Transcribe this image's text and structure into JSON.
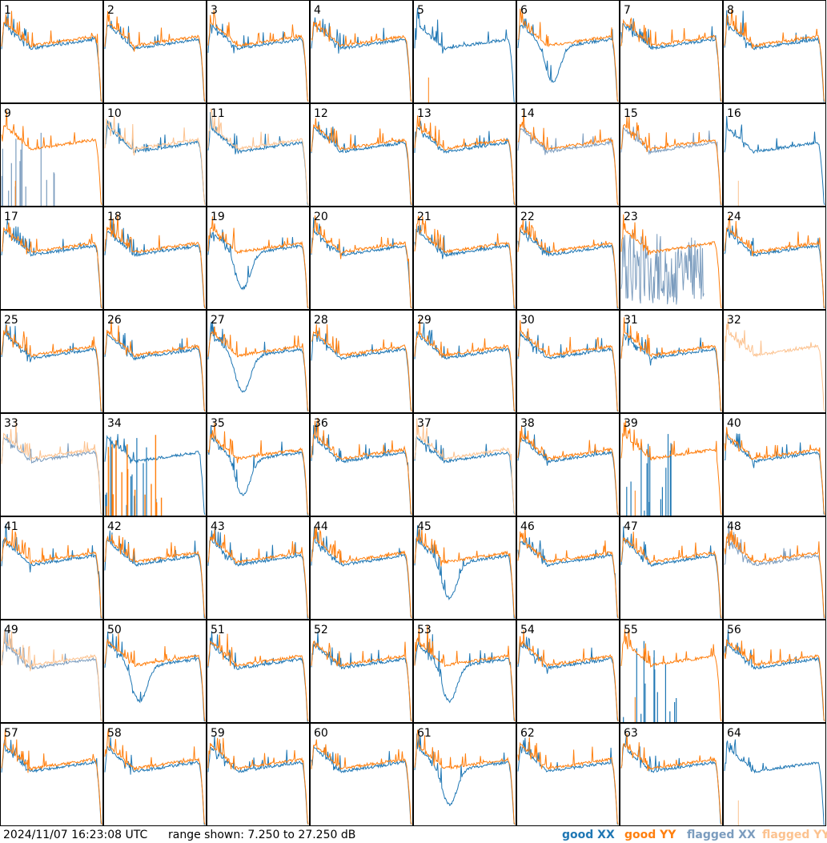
{
  "colors": {
    "good_xx": "#1f77b4",
    "good_yy": "#ff7f0e",
    "flagged_xx": "#7b9cbe",
    "flagged_yy": "#fcc28f"
  },
  "footer": {
    "timestamp": "2024/11/07 16:23:08 UTC",
    "range": "range shown: 7.250 to 27.250 dB",
    "legend_good_xx": "good XX",
    "legend_good_yy": "good YY",
    "legend_flagged_xx": "flagged XX",
    "legend_flagged_yy": "flagged YY"
  },
  "chart_data": {
    "type": "line",
    "ylim": [
      7.25,
      27.25
    ],
    "units": "dB",
    "panels": [
      {
        "label": "1",
        "shape": "normal",
        "xx": "good",
        "yy": "good"
      },
      {
        "label": "2",
        "shape": "normal",
        "xx": "good",
        "yy": "good"
      },
      {
        "label": "3",
        "shape": "normal",
        "xx": "good",
        "yy": "good"
      },
      {
        "label": "4",
        "shape": "normal",
        "xx": "good",
        "yy": "good"
      },
      {
        "label": "5",
        "shape": "x-only",
        "xx": "good",
        "yy": "good"
      },
      {
        "label": "6",
        "shape": "xx-dip",
        "xx": "good",
        "yy": "good"
      },
      {
        "label": "7",
        "shape": "normal",
        "xx": "good",
        "yy": "good"
      },
      {
        "label": "8",
        "shape": "normal",
        "xx": "good",
        "yy": "good"
      },
      {
        "label": "9",
        "shape": "x-spikes",
        "xx": "flagged",
        "yy": "good"
      },
      {
        "label": "10",
        "shape": "flagged-both",
        "xx": "good",
        "yy": "flagged"
      },
      {
        "label": "11",
        "shape": "flagged-both",
        "xx": "good",
        "yy": "flagged"
      },
      {
        "label": "12",
        "shape": "normal",
        "xx": "good",
        "yy": "good"
      },
      {
        "label": "13",
        "shape": "normal",
        "xx": "good",
        "yy": "good"
      },
      {
        "label": "14",
        "shape": "normal",
        "xx": "flagged",
        "yy": "good"
      },
      {
        "label": "15",
        "shape": "normal",
        "xx": "flagged",
        "yy": "good"
      },
      {
        "label": "16",
        "shape": "x-only",
        "xx": "good",
        "yy": "flagged"
      },
      {
        "label": "17",
        "shape": "normal",
        "xx": "good",
        "yy": "good"
      },
      {
        "label": "18",
        "shape": "normal",
        "xx": "good",
        "yy": "good"
      },
      {
        "label": "19",
        "shape": "xx-dip",
        "xx": "good",
        "yy": "good"
      },
      {
        "label": "20",
        "shape": "normal",
        "xx": "good",
        "yy": "good"
      },
      {
        "label": "21",
        "shape": "normal",
        "xx": "good",
        "yy": "good"
      },
      {
        "label": "22",
        "shape": "normal",
        "xx": "good",
        "yy": "good"
      },
      {
        "label": "23",
        "shape": "x-noise",
        "xx": "flagged",
        "yy": "good"
      },
      {
        "label": "24",
        "shape": "normal",
        "xx": "good",
        "yy": "good"
      },
      {
        "label": "25",
        "shape": "normal",
        "xx": "good",
        "yy": "good"
      },
      {
        "label": "26",
        "shape": "normal",
        "xx": "good",
        "yy": "good"
      },
      {
        "label": "27",
        "shape": "xx-dip",
        "xx": "good",
        "yy": "good"
      },
      {
        "label": "28",
        "shape": "normal",
        "xx": "good",
        "yy": "good"
      },
      {
        "label": "29",
        "shape": "normal",
        "xx": "good",
        "yy": "good"
      },
      {
        "label": "30",
        "shape": "normal",
        "xx": "good",
        "yy": "good"
      },
      {
        "label": "31",
        "shape": "normal",
        "xx": "good",
        "yy": "good"
      },
      {
        "label": "32",
        "shape": "y-only",
        "xx": "flagged",
        "yy": "flagged"
      },
      {
        "label": "33",
        "shape": "flagged-both",
        "xx": "flagged",
        "yy": "flagged"
      },
      {
        "label": "34",
        "shape": "x-yspikes",
        "xx": "good",
        "yy": "good"
      },
      {
        "label": "35",
        "shape": "xx-dip",
        "xx": "good",
        "yy": "good"
      },
      {
        "label": "36",
        "shape": "normal",
        "xx": "good",
        "yy": "good"
      },
      {
        "label": "37",
        "shape": "flagged-both",
        "xx": "good",
        "yy": "flagged"
      },
      {
        "label": "38",
        "shape": "normal",
        "xx": "good",
        "yy": "good"
      },
      {
        "label": "39",
        "shape": "x-spikes",
        "xx": "good",
        "yy": "good"
      },
      {
        "label": "40",
        "shape": "normal",
        "xx": "good",
        "yy": "good"
      },
      {
        "label": "41",
        "shape": "normal",
        "xx": "good",
        "yy": "good"
      },
      {
        "label": "42",
        "shape": "normal",
        "xx": "good",
        "yy": "good"
      },
      {
        "label": "43",
        "shape": "normal",
        "xx": "good",
        "yy": "good"
      },
      {
        "label": "44",
        "shape": "normal",
        "xx": "good",
        "yy": "good"
      },
      {
        "label": "45",
        "shape": "xx-dip",
        "xx": "good",
        "yy": "good"
      },
      {
        "label": "46",
        "shape": "normal",
        "xx": "good",
        "yy": "good"
      },
      {
        "label": "47",
        "shape": "normal",
        "xx": "good",
        "yy": "good"
      },
      {
        "label": "48",
        "shape": "flagged-both",
        "xx": "flagged",
        "yy": "good"
      },
      {
        "label": "49",
        "shape": "flagged-both",
        "xx": "flagged",
        "yy": "flagged"
      },
      {
        "label": "50",
        "shape": "xx-dip",
        "xx": "good",
        "yy": "good"
      },
      {
        "label": "51",
        "shape": "normal",
        "xx": "good",
        "yy": "good"
      },
      {
        "label": "52",
        "shape": "normal",
        "xx": "good",
        "yy": "good"
      },
      {
        "label": "53",
        "shape": "xx-dip",
        "xx": "good",
        "yy": "good"
      },
      {
        "label": "54",
        "shape": "normal",
        "xx": "good",
        "yy": "good"
      },
      {
        "label": "55",
        "shape": "x-spikes",
        "xx": "good",
        "yy": "good"
      },
      {
        "label": "56",
        "shape": "normal",
        "xx": "good",
        "yy": "good"
      },
      {
        "label": "57",
        "shape": "normal",
        "xx": "good",
        "yy": "good"
      },
      {
        "label": "58",
        "shape": "normal",
        "xx": "good",
        "yy": "good"
      },
      {
        "label": "59",
        "shape": "normal",
        "xx": "good",
        "yy": "good"
      },
      {
        "label": "60",
        "shape": "normal",
        "xx": "good",
        "yy": "good"
      },
      {
        "label": "61",
        "shape": "xx-dip",
        "xx": "good",
        "yy": "good"
      },
      {
        "label": "62",
        "shape": "normal",
        "xx": "good",
        "yy": "good"
      },
      {
        "label": "63",
        "shape": "normal",
        "xx": "good",
        "yy": "good"
      },
      {
        "label": "64",
        "shape": "x-only",
        "xx": "good",
        "yy": "flagged"
      }
    ]
  }
}
